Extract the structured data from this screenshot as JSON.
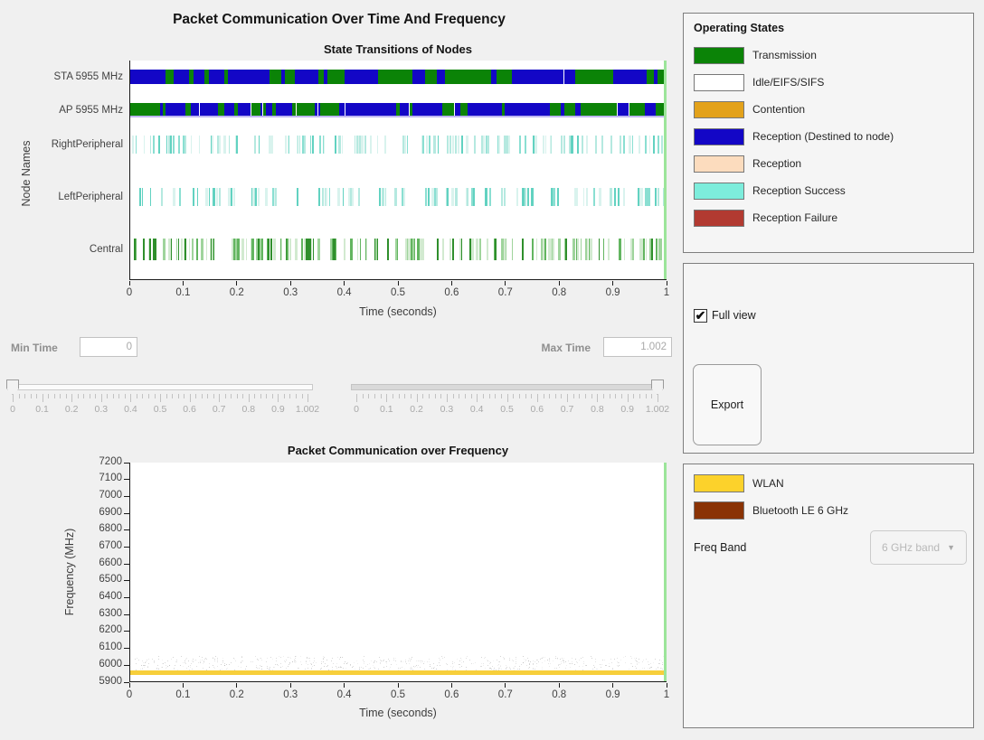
{
  "main_title": "Packet Communication Over Time And Frequency",
  "state_chart": {
    "title": "State Transitions of Nodes",
    "xlabel": "Time (seconds)",
    "ylabel": "Node Names",
    "x_tick_labels": [
      "0",
      "0.1",
      "0.2",
      "0.3",
      "0.4",
      "0.5",
      "0.6",
      "0.7",
      "0.8",
      "0.9",
      "1"
    ]
  },
  "freq_chart": {
    "title": "Packet Communication over Frequency",
    "xlabel": "Time (seconds)",
    "ylabel": "Frequency (MHz)",
    "x_tick_labels": [
      "0",
      "0.1",
      "0.2",
      "0.3",
      "0.4",
      "0.5",
      "0.6",
      "0.7",
      "0.8",
      "0.9",
      "1"
    ],
    "y_tick_labels": [
      "7200",
      "7100",
      "7000",
      "6900",
      "6800",
      "6700",
      "6600",
      "6500",
      "6400",
      "6300",
      "6200",
      "6100",
      "6000",
      "5900"
    ]
  },
  "time_controls": {
    "min_label": "Min Time",
    "min_value": "0",
    "max_label": "Max Time",
    "max_value": "1.002",
    "slider_tick_labels": [
      "0",
      "0.1",
      "0.2",
      "0.3",
      "0.4",
      "0.5",
      "0.6",
      "0.7",
      "0.8",
      "0.9",
      "1.002"
    ],
    "min_slider_position": 0,
    "max_slider_position": 1.002
  },
  "operating_states_panel": {
    "title": "Operating States",
    "items": [
      {
        "label": "Transmission",
        "color": "#0b8307"
      },
      {
        "label": "Idle/EIFS/SIFS",
        "color": "#ffffff"
      },
      {
        "label": "Contention",
        "color": "#e3a21b"
      },
      {
        "label": "Reception (Destined to node)",
        "color": "#1306c6"
      },
      {
        "label": "Reception",
        "color": "#fcdcbe"
      },
      {
        "label": "Reception Success",
        "color": "#7deddc"
      },
      {
        "label": "Reception Failure",
        "color": "#b23a31"
      }
    ]
  },
  "view_panel": {
    "full_view_label": "Full view",
    "full_view_checked": true,
    "check_glyph": "✔",
    "export_label": "Export"
  },
  "freq_panel": {
    "items": [
      {
        "label": "WLAN",
        "color": "#fcd22b"
      },
      {
        "label": "Bluetooth LE 6 GHz",
        "color": "#8a3305"
      }
    ],
    "freq_band_label": "Freq Band",
    "freq_band_value": "6 GHz band",
    "caret_glyph": "▼"
  },
  "chart_data": [
    {
      "type": "heatmap",
      "subtype": "state-timeline",
      "title": "State Transitions of Nodes",
      "xlabel": "Time (seconds)",
      "ylabel": "Node Names",
      "xlim": [
        0,
        1.002
      ],
      "legend_position": "right-panel",
      "grid": false,
      "cursor": {
        "x": 1.002,
        "color": "#9ce59a"
      },
      "rows": [
        {
          "node": "STA 5955 MHz",
          "style": "dense",
          "seed": 7,
          "states": [
            "Transmission",
            "Reception (Destined to node)"
          ],
          "colors": [
            "#0b8307",
            "#1306c6"
          ],
          "coverage": "continuous 0-1 s"
        },
        {
          "node": "AP 5955 MHz",
          "style": "dense",
          "seed": 13,
          "states": [
            "Reception (Destined to node)",
            "Transmission"
          ],
          "colors": [
            "#1306c6",
            "#0b8307"
          ],
          "underline_color": "#beb6f2",
          "coverage": "continuous 0-1 s"
        },
        {
          "node": "RightPeripheral",
          "style": "sparse",
          "seed": 21,
          "count": 118,
          "states": [
            "Reception Success"
          ],
          "colors": [
            "#d9f3ee",
            "#b5e9e0",
            "#8adfd2",
            "#62d2c1"
          ]
        },
        {
          "node": "LeftPeripheral",
          "style": "sparse",
          "seed": 33,
          "count": 104,
          "states": [
            "Reception Success"
          ],
          "colors": [
            "#d9f3ee",
            "#b5e9e0",
            "#8adfd2",
            "#62d2c1"
          ]
        },
        {
          "node": "Central",
          "style": "sparse",
          "seed": 44,
          "count": 148,
          "states": [
            "Transmission"
          ],
          "colors": [
            "#d2ead0",
            "#9fd49c",
            "#63b560",
            "#2f8f2c"
          ]
        }
      ]
    },
    {
      "type": "heatmap",
      "subtype": "frequency-timeline",
      "title": "Packet Communication over Frequency",
      "xlabel": "Time (seconds)",
      "ylabel": "Frequency (MHz)",
      "xlim": [
        0,
        1.002
      ],
      "ylim": [
        5900,
        7200
      ],
      "grid": false,
      "cursor": {
        "x": 1.002,
        "color": "#9ce59a"
      },
      "series": [
        {
          "name": "WLAN",
          "color": "#f7cf3b",
          "band_mhz": [
            5945,
            5972
          ],
          "coverage": "continuous solid band 0-1 s"
        },
        {
          "name": "Bluetooth LE 6 GHz",
          "color": "#8a3305",
          "rendered_as": "faint gray speckle of short hops",
          "band_mhz": [
            5975,
            6055
          ],
          "seed": 99,
          "dot_count": 650,
          "coverage": "sparse hops 0-1 s"
        }
      ]
    }
  ]
}
